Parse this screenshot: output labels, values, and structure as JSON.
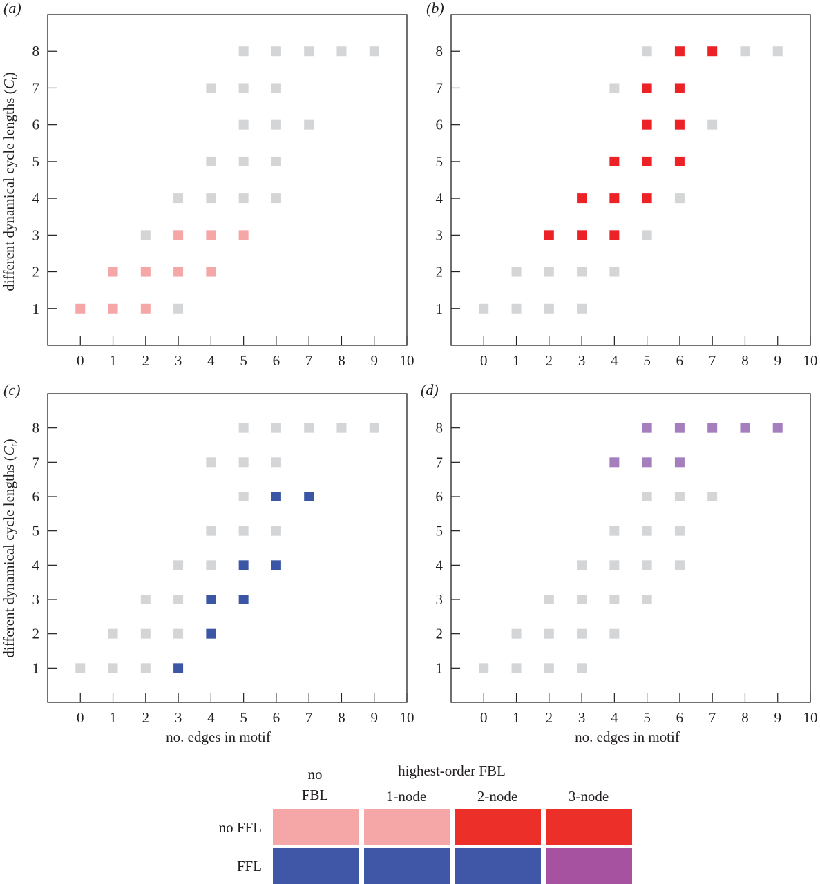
{
  "chart_data": [
    {
      "type": "scatter",
      "panel_label": "(a)",
      "xlabel": "",
      "ylabel": "different dynamical cycle lengths (C_t)",
      "x_ticks": [
        0,
        1,
        2,
        3,
        4,
        5,
        6,
        7,
        8,
        9,
        10
      ],
      "y_ticks": [
        1,
        2,
        3,
        4,
        5,
        6,
        7,
        8
      ],
      "xlim": [
        -1,
        10
      ],
      "ylim": [
        0,
        9
      ],
      "highlight_color": "#f4a7a6",
      "background_points": [
        [
          3,
          1
        ],
        [
          2,
          3
        ],
        [
          3,
          4
        ],
        [
          4,
          4
        ],
        [
          5,
          4
        ],
        [
          6,
          4
        ],
        [
          4,
          5
        ],
        [
          5,
          5
        ],
        [
          6,
          5
        ],
        [
          5,
          6
        ],
        [
          6,
          6
        ],
        [
          7,
          6
        ],
        [
          4,
          7
        ],
        [
          5,
          7
        ],
        [
          6,
          7
        ],
        [
          5,
          8
        ],
        [
          6,
          8
        ],
        [
          7,
          8
        ],
        [
          8,
          8
        ],
        [
          9,
          8
        ]
      ],
      "highlight_points": [
        [
          0,
          1
        ],
        [
          1,
          1
        ],
        [
          2,
          1
        ],
        [
          1,
          2
        ],
        [
          2,
          2
        ],
        [
          3,
          2
        ],
        [
          4,
          2
        ],
        [
          3,
          3
        ],
        [
          4,
          3
        ],
        [
          5,
          3
        ]
      ]
    },
    {
      "type": "scatter",
      "panel_label": "(b)",
      "xlabel": "",
      "ylabel": "",
      "x_ticks": [
        0,
        1,
        2,
        3,
        4,
        5,
        6,
        7,
        8,
        9,
        10
      ],
      "y_ticks": [
        1,
        2,
        3,
        4,
        5,
        6,
        7,
        8
      ],
      "xlim": [
        -1,
        10
      ],
      "ylim": [
        0,
        9
      ],
      "highlight_color": "#ec2227",
      "background_points": [
        [
          0,
          1
        ],
        [
          1,
          1
        ],
        [
          2,
          1
        ],
        [
          3,
          1
        ],
        [
          1,
          2
        ],
        [
          2,
          2
        ],
        [
          3,
          2
        ],
        [
          4,
          2
        ],
        [
          5,
          3
        ],
        [
          6,
          4
        ],
        [
          7,
          6
        ],
        [
          4,
          7
        ],
        [
          5,
          8
        ],
        [
          8,
          8
        ],
        [
          9,
          8
        ]
      ],
      "highlight_points": [
        [
          2,
          3
        ],
        [
          3,
          3
        ],
        [
          4,
          3
        ],
        [
          3,
          4
        ],
        [
          4,
          4
        ],
        [
          5,
          4
        ],
        [
          4,
          5
        ],
        [
          5,
          5
        ],
        [
          6,
          5
        ],
        [
          5,
          6
        ],
        [
          6,
          6
        ],
        [
          5,
          7
        ],
        [
          6,
          7
        ],
        [
          6,
          8
        ],
        [
          7,
          8
        ]
      ]
    },
    {
      "type": "scatter",
      "panel_label": "(c)",
      "xlabel": "no. edges in motif",
      "ylabel": "different dynamical cycle lengths (C_t)",
      "x_ticks": [
        0,
        1,
        2,
        3,
        4,
        5,
        6,
        7,
        8,
        9,
        10
      ],
      "y_ticks": [
        1,
        2,
        3,
        4,
        5,
        6,
        7,
        8
      ],
      "xlim": [
        -1,
        10
      ],
      "ylim": [
        0,
        9
      ],
      "highlight_color": "#3b56a5",
      "background_points": [
        [
          0,
          1
        ],
        [
          1,
          1
        ],
        [
          2,
          1
        ],
        [
          1,
          2
        ],
        [
          2,
          2
        ],
        [
          3,
          2
        ],
        [
          2,
          3
        ],
        [
          3,
          3
        ],
        [
          3,
          4
        ],
        [
          4,
          4
        ],
        [
          4,
          5
        ],
        [
          5,
          5
        ],
        [
          6,
          5
        ],
        [
          5,
          6
        ],
        [
          4,
          7
        ],
        [
          5,
          7
        ],
        [
          6,
          7
        ],
        [
          5,
          8
        ],
        [
          6,
          8
        ],
        [
          7,
          8
        ],
        [
          8,
          8
        ],
        [
          9,
          8
        ]
      ],
      "highlight_points": [
        [
          3,
          1
        ],
        [
          4,
          2
        ],
        [
          4,
          3
        ],
        [
          5,
          3
        ],
        [
          5,
          4
        ],
        [
          6,
          4
        ],
        [
          6,
          6
        ],
        [
          7,
          6
        ]
      ]
    },
    {
      "type": "scatter",
      "panel_label": "(d)",
      "xlabel": "no. edges in motif",
      "ylabel": "",
      "x_ticks": [
        0,
        1,
        2,
        3,
        4,
        5,
        6,
        7,
        8,
        9,
        10
      ],
      "y_ticks": [
        1,
        2,
        3,
        4,
        5,
        6,
        7,
        8
      ],
      "xlim": [
        -1,
        10
      ],
      "ylim": [
        0,
        9
      ],
      "highlight_color": "#a47ebd",
      "background_points": [
        [
          0,
          1
        ],
        [
          1,
          1
        ],
        [
          2,
          1
        ],
        [
          3,
          1
        ],
        [
          1,
          2
        ],
        [
          2,
          2
        ],
        [
          3,
          2
        ],
        [
          4,
          2
        ],
        [
          2,
          3
        ],
        [
          3,
          3
        ],
        [
          4,
          3
        ],
        [
          5,
          3
        ],
        [
          3,
          4
        ],
        [
          4,
          4
        ],
        [
          5,
          4
        ],
        [
          6,
          4
        ],
        [
          4,
          5
        ],
        [
          5,
          5
        ],
        [
          6,
          5
        ],
        [
          5,
          6
        ],
        [
          6,
          6
        ],
        [
          7,
          6
        ]
      ],
      "highlight_points": [
        [
          4,
          7
        ],
        [
          5,
          7
        ],
        [
          6,
          7
        ],
        [
          5,
          8
        ],
        [
          6,
          8
        ],
        [
          7,
          8
        ],
        [
          8,
          8
        ],
        [
          9,
          8
        ]
      ]
    }
  ],
  "colors": {
    "background_square": "#d4d5d6",
    "axis": "#231f20"
  },
  "legend": {
    "title": "highest-order FBL",
    "col_header_no_fbl_line1": "no",
    "col_header_no_fbl_line2": "FBL",
    "col_headers": [
      "1-node",
      "2-node",
      "3-node"
    ],
    "row_labels": [
      "no FFL",
      "FFL"
    ],
    "cells": [
      [
        "#f4a7a6",
        "#f4a7a6",
        "#ec2f28",
        "#ec2f28"
      ],
      [
        "#3f57a6",
        "#3f57a6",
        "#3f57a6",
        "#a752a0"
      ]
    ]
  }
}
